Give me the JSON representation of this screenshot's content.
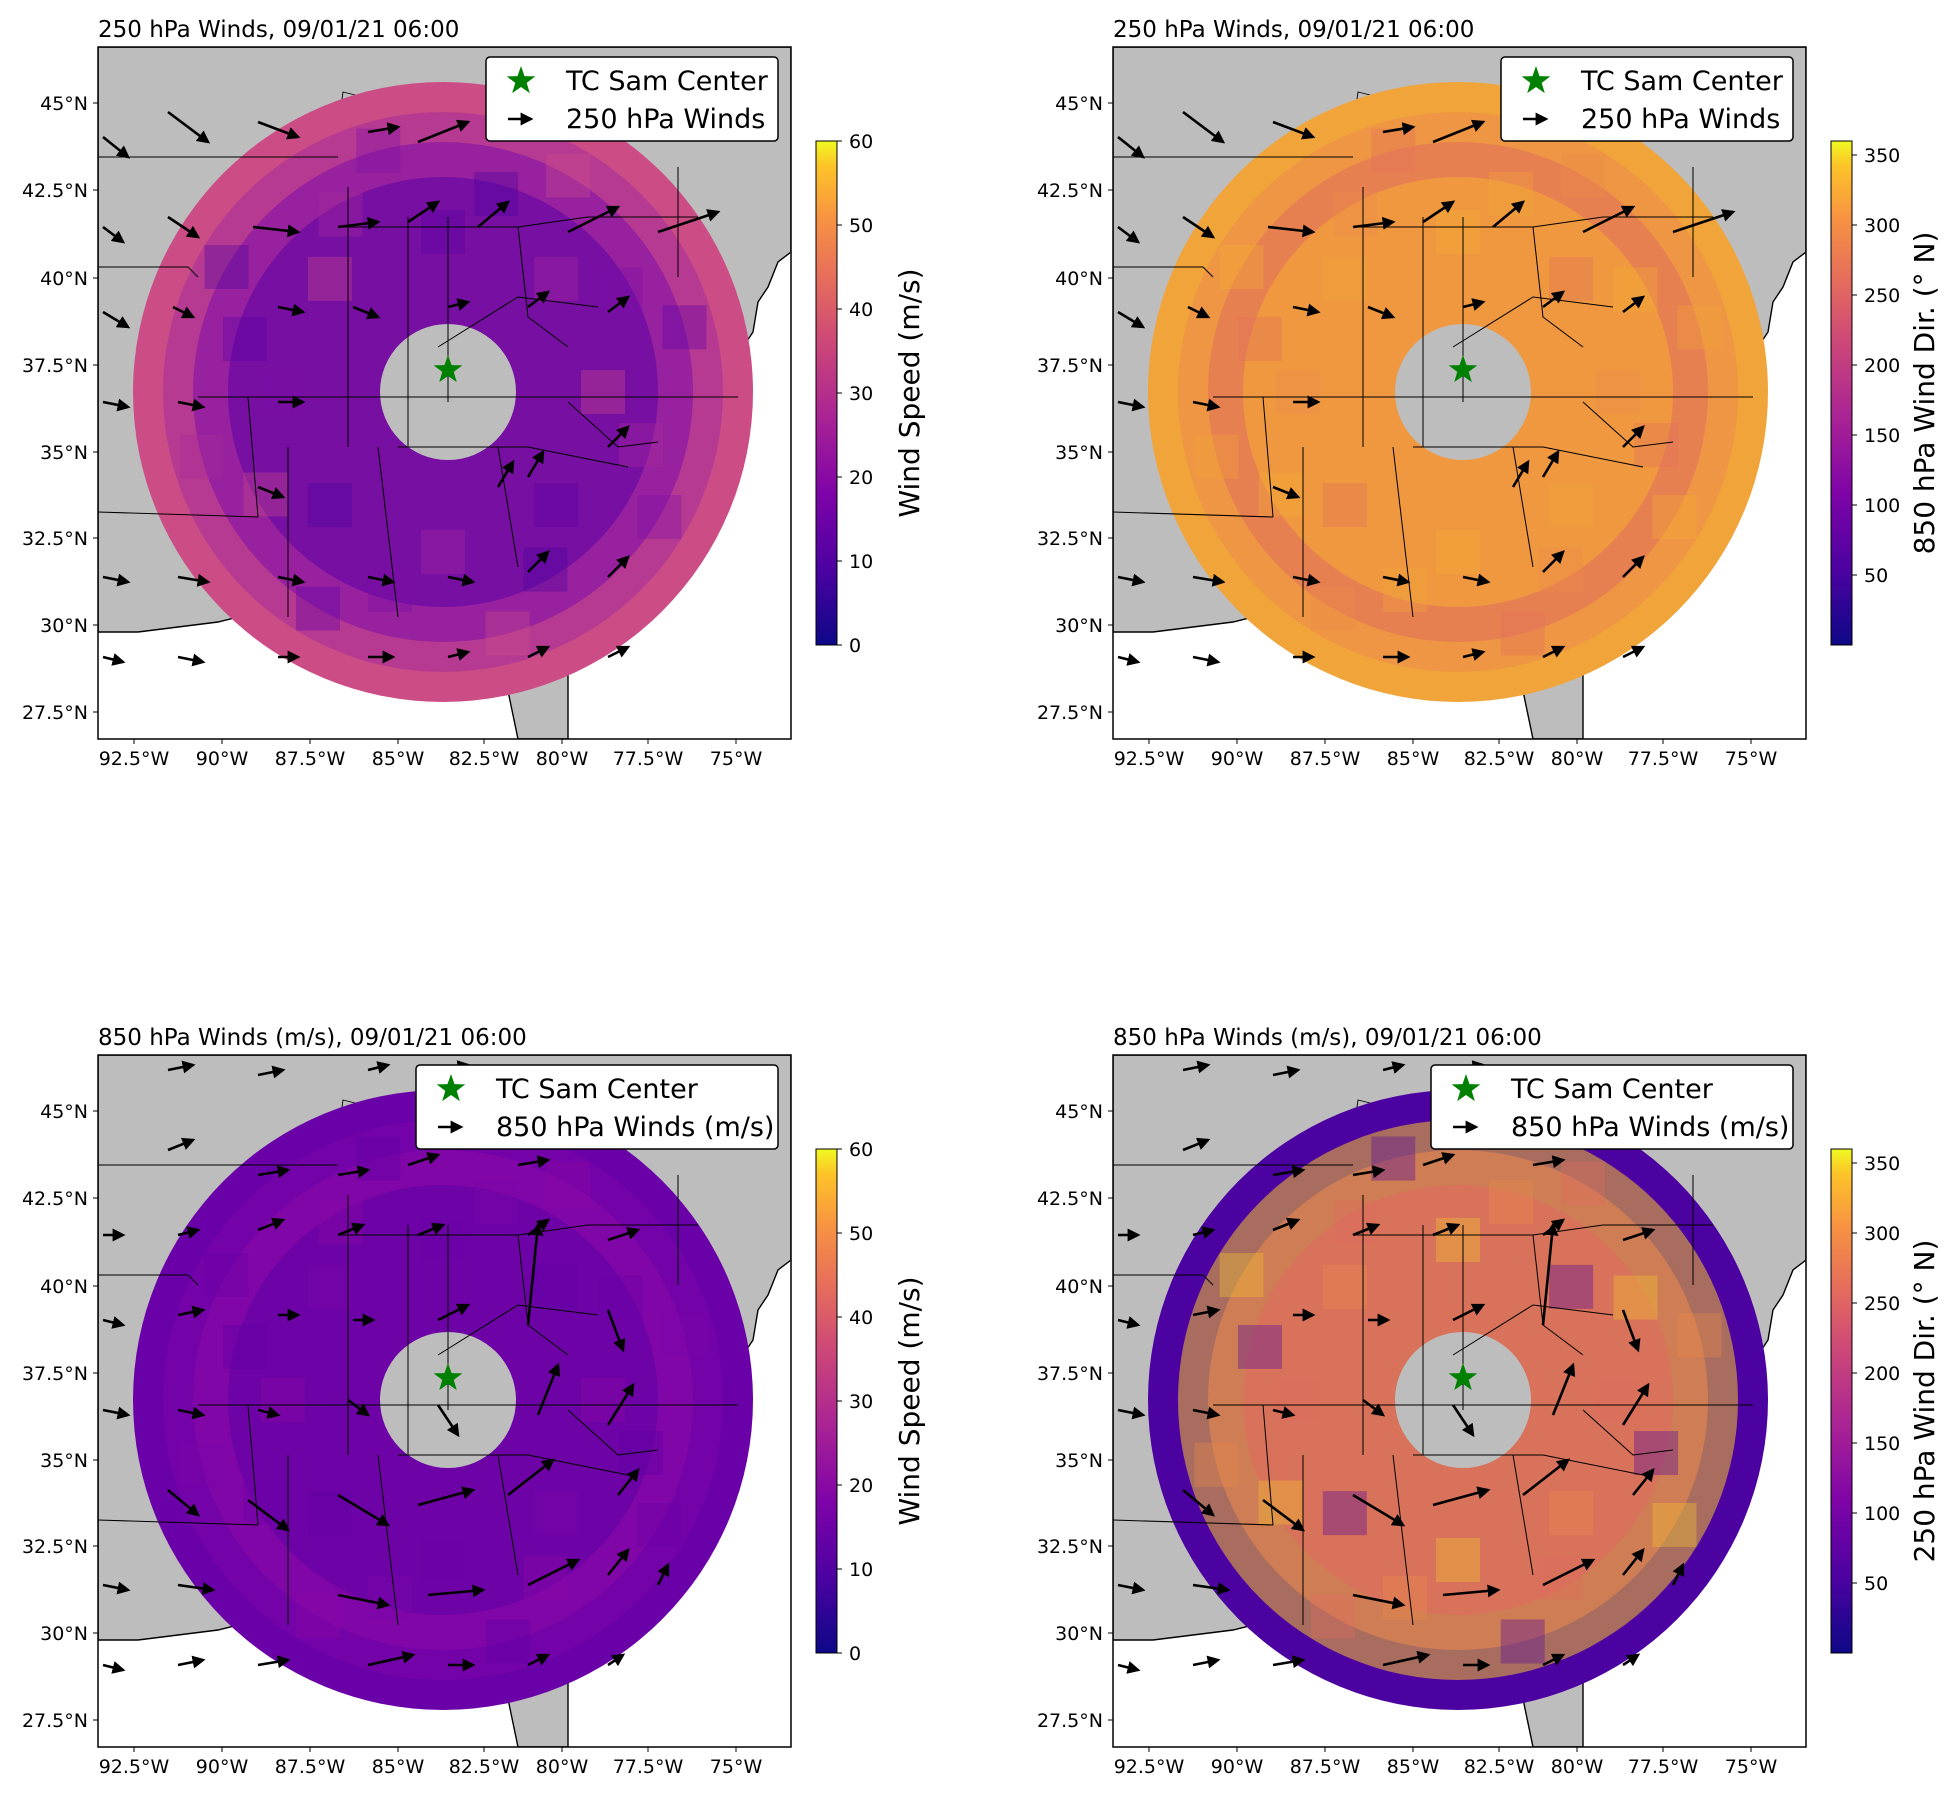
{
  "panels": [
    {
      "id": "tl",
      "title": "250 hPa Winds, 09/01/21 06:00",
      "legend": {
        "marker_label": "TC Sam Center",
        "arrow_label": "250 hPa Winds"
      },
      "colorbar": {
        "label": "Wind Speed (m/s)",
        "ticks": [
          "0",
          "10",
          "20",
          "30",
          "40",
          "50",
          "60"
        ],
        "colormap": "plasma"
      },
      "field": {
        "variable": "wind speed",
        "ring_colors": [
          "#cc4d86",
          "#a62b9c",
          "#7e0da8",
          "#5c01a6",
          "#4a02a0"
        ]
      }
    },
    {
      "id": "tr",
      "title": "250 hPa Winds, 09/01/21 06:00",
      "legend": {
        "marker_label": "TC Sam Center",
        "arrow_label": "250 hPa Winds"
      },
      "colorbar": {
        "label": "850 hPa Wind Dir. (° N)",
        "ticks": [
          "50",
          "100",
          "150",
          "200",
          "250",
          "300",
          "350"
        ],
        "colormap": "plasma"
      },
      "field": {
        "variable": "wind direction",
        "ring_colors": [
          "#f0a43a",
          "#ec8a4b",
          "#e2705c",
          "#f5ac33"
        ]
      }
    },
    {
      "id": "bl",
      "title": "850 hPa Winds (m/s), 09/01/21 06:00",
      "legend": {
        "marker_label": "TC Sam Center",
        "arrow_label": "850 hPa Winds (m/s)"
      },
      "colorbar": {
        "label": "Wind Speed (m/s)",
        "ticks": [
          "0",
          "10",
          "20",
          "30",
          "40",
          "50",
          "60"
        ],
        "colormap": "plasma"
      },
      "field": {
        "variable": "wind speed",
        "ring_colors": [
          "#6a00a8",
          "#7a06a8",
          "#8b0aa5",
          "#5c01a6"
        ]
      }
    },
    {
      "id": "br",
      "title": "850 hPa Winds (m/s), 09/01/21 06:00",
      "legend": {
        "marker_label": "TC Sam Center",
        "arrow_label": "850 hPa Winds (m/s)"
      },
      "colorbar": {
        "label": "250 hPa Wind Dir. (° N)",
        "ticks": [
          "50",
          "100",
          "150",
          "200",
          "250",
          "300",
          "350"
        ],
        "colormap": "plasma"
      },
      "field": {
        "variable": "wind direction",
        "ring_colors": [
          "#4c02a1",
          "#f6c72c",
          "#ec8a4b",
          "#e0695f"
        ]
      }
    }
  ],
  "axes": {
    "lat_ticks": [
      "45°N",
      "42.5°N",
      "40°N",
      "37.5°N",
      "35°N",
      "32.5°N",
      "30°N",
      "27.5°N"
    ],
    "lon_ticks": [
      "92.5°W",
      "90°W",
      "87.5°W",
      "85°W",
      "82.5°W",
      "80°W",
      "77.5°W",
      "75°W"
    ]
  },
  "colors": {
    "land": "#bdbdbd",
    "ocean": "#ffffff",
    "storm_marker": "#008000",
    "mask": "#bdbdbd"
  }
}
